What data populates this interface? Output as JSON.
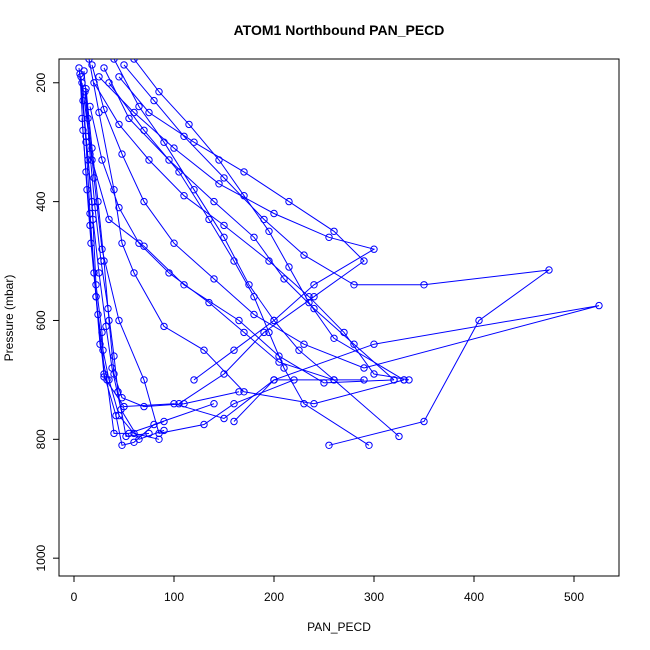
{
  "chart_data": {
    "type": "line",
    "title": "ATOM1 Northbound PAN_PECD",
    "xlabel": "PAN_PECD",
    "ylabel": "Pressure (mbar)",
    "xlim": [
      -15,
      545
    ],
    "ylim": [
      1030,
      160
    ],
    "y_reversed": true,
    "x_ticks": [
      0,
      100,
      200,
      300,
      400,
      500
    ],
    "y_ticks": [
      200,
      400,
      600,
      800,
      1000
    ],
    "series_color": "#0000ff",
    "marker": "open-circle",
    "grid": false,
    "series": [
      {
        "points": [
          [
            5,
            175
          ],
          [
            12,
            290
          ],
          [
            18,
            400
          ],
          [
            22,
            540
          ],
          [
            28,
            620
          ],
          [
            30,
            695
          ],
          [
            50,
            745
          ],
          [
            100,
            740
          ],
          [
            150,
            765
          ],
          [
            200,
            700
          ],
          [
            290,
            700
          ]
        ]
      },
      {
        "points": [
          [
            15,
            160
          ],
          [
            25,
            250
          ],
          [
            40,
            380
          ],
          [
            48,
            470
          ],
          [
            60,
            520
          ],
          [
            90,
            610
          ],
          [
            130,
            650
          ],
          [
            170,
            720
          ],
          [
            240,
            740
          ],
          [
            330,
            700
          ]
        ]
      },
      {
        "points": [
          [
            8,
            200
          ],
          [
            18,
            330
          ],
          [
            35,
            430
          ],
          [
            70,
            475
          ],
          [
            110,
            540
          ],
          [
            165,
            600
          ],
          [
            205,
            660
          ],
          [
            250,
            705
          ],
          [
            320,
            700
          ]
        ]
      },
      {
        "points": [
          [
            10,
            180
          ],
          [
            14,
            260
          ],
          [
            20,
            360
          ],
          [
            28,
            480
          ],
          [
            45,
            600
          ],
          [
            70,
            700
          ],
          [
            85,
            790
          ],
          [
            130,
            775
          ],
          [
            160,
            740
          ],
          [
            220,
            700
          ]
        ]
      },
      {
        "points": [
          [
            7,
            190
          ],
          [
            12,
            300
          ],
          [
            16,
            420
          ],
          [
            22,
            560
          ],
          [
            30,
            690
          ],
          [
            42,
            760
          ],
          [
            48,
            810
          ],
          [
            60,
            805
          ],
          [
            80,
            775
          ],
          [
            140,
            740
          ]
        ]
      },
      {
        "points": [
          [
            20,
            200
          ],
          [
            45,
            270
          ],
          [
            75,
            330
          ],
          [
            110,
            390
          ],
          [
            150,
            440
          ],
          [
            195,
            500
          ],
          [
            235,
            560
          ],
          [
            270,
            620
          ],
          [
            300,
            690
          ],
          [
            335,
            700
          ]
        ]
      },
      {
        "points": [
          [
            40,
            160
          ],
          [
            65,
            240
          ],
          [
            90,
            300
          ],
          [
            120,
            380
          ],
          [
            150,
            460
          ],
          [
            175,
            540
          ],
          [
            200,
            600
          ],
          [
            225,
            650
          ],
          [
            260,
            700
          ]
        ]
      },
      {
        "points": [
          [
            30,
            175
          ],
          [
            55,
            260
          ],
          [
            95,
            330
          ],
          [
            140,
            400
          ],
          [
            180,
            460
          ],
          [
            210,
            530
          ],
          [
            240,
            580
          ],
          [
            280,
            640
          ],
          [
            320,
            700
          ]
        ]
      },
      {
        "points": [
          [
            12,
            210
          ],
          [
            18,
            310
          ],
          [
            24,
            400
          ],
          [
            30,
            500
          ],
          [
            35,
            600
          ],
          [
            40,
            690
          ],
          [
            48,
            730
          ],
          [
            70,
            745
          ],
          [
            110,
            740
          ],
          [
            165,
            720
          ]
        ]
      },
      {
        "points": [
          [
            6,
            185
          ],
          [
            9,
            280
          ],
          [
            13,
            380
          ],
          [
            17,
            470
          ],
          [
            22,
            560
          ],
          [
            26,
            640
          ],
          [
            33,
            700
          ],
          [
            40,
            790
          ],
          [
            55,
            790
          ],
          [
            90,
            770
          ]
        ]
      },
      {
        "points": [
          [
            50,
            170
          ],
          [
            80,
            230
          ],
          [
            110,
            290
          ],
          [
            150,
            360
          ],
          [
            190,
            430
          ],
          [
            230,
            490
          ],
          [
            280,
            540
          ],
          [
            350,
            540
          ],
          [
            475,
            515
          ],
          [
            405,
            600
          ],
          [
            350,
            770
          ],
          [
            255,
            810
          ]
        ]
      },
      {
        "points": [
          [
            25,
            190
          ],
          [
            60,
            250
          ],
          [
            100,
            310
          ],
          [
            145,
            370
          ],
          [
            200,
            420
          ],
          [
            255,
            460
          ],
          [
            300,
            480
          ],
          [
            240,
            540
          ],
          [
            200,
            600
          ],
          [
            160,
            650
          ],
          [
            120,
            700
          ]
        ]
      },
      {
        "points": [
          [
            9,
            230
          ],
          [
            14,
            330
          ],
          [
            19,
            430
          ],
          [
            25,
            520
          ],
          [
            32,
            610
          ],
          [
            38,
            680
          ],
          [
            47,
            750
          ],
          [
            65,
            800
          ],
          [
            90,
            785
          ]
        ]
      },
      {
        "points": [
          [
            35,
            200
          ],
          [
            70,
            280
          ],
          [
            105,
            350
          ],
          [
            135,
            430
          ],
          [
            160,
            500
          ],
          [
            180,
            560
          ],
          [
            195,
            620
          ],
          [
            210,
            680
          ],
          [
            230,
            740
          ],
          [
            295,
            810
          ]
        ]
      },
      {
        "points": [
          [
            18,
            170
          ],
          [
            30,
            245
          ],
          [
            48,
            320
          ],
          [
            70,
            400
          ],
          [
            100,
            470
          ],
          [
            140,
            530
          ],
          [
            180,
            590
          ],
          [
            230,
            640
          ],
          [
            290,
            680
          ],
          [
            525,
            575
          ],
          [
            300,
            640
          ],
          [
            200,
            700
          ],
          [
            160,
            770
          ]
        ]
      },
      {
        "points": [
          [
            11,
            215
          ],
          [
            16,
            320
          ],
          [
            21,
            410
          ],
          [
            27,
            500
          ],
          [
            34,
            580
          ],
          [
            40,
            660
          ],
          [
            44,
            720
          ],
          [
            52,
            795
          ],
          [
            75,
            790
          ]
        ]
      },
      {
        "points": [
          [
            60,
            160
          ],
          [
            85,
            215
          ],
          [
            115,
            270
          ],
          [
            145,
            330
          ],
          [
            170,
            390
          ],
          [
            195,
            450
          ],
          [
            215,
            510
          ],
          [
            235,
            570
          ],
          [
            260,
            630
          ],
          [
            330,
            700
          ]
        ]
      },
      {
        "points": [
          [
            16,
            240
          ],
          [
            28,
            330
          ],
          [
            45,
            410
          ],
          [
            65,
            470
          ],
          [
            95,
            520
          ],
          [
            135,
            570
          ],
          [
            170,
            620
          ],
          [
            205,
            670
          ],
          [
            260,
            700
          ],
          [
            325,
            795
          ]
        ]
      },
      {
        "points": [
          [
            8,
            260
          ],
          [
            12,
            350
          ],
          [
            16,
            440
          ],
          [
            20,
            520
          ],
          [
            24,
            590
          ],
          [
            29,
            650
          ],
          [
            35,
            700
          ],
          [
            45,
            760
          ],
          [
            60,
            790
          ],
          [
            85,
            800
          ]
        ]
      },
      {
        "points": [
          [
            45,
            190
          ],
          [
            75,
            250
          ],
          [
            120,
            300
          ],
          [
            170,
            350
          ],
          [
            215,
            400
          ],
          [
            260,
            450
          ],
          [
            290,
            500
          ],
          [
            240,
            560
          ],
          [
            190,
            620
          ],
          [
            150,
            690
          ],
          [
            105,
            740
          ]
        ]
      }
    ]
  }
}
